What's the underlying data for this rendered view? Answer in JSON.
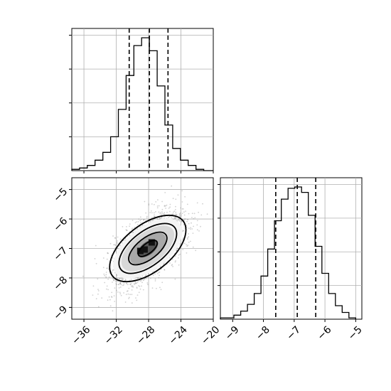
{
  "chart_data": {
    "type": "corner",
    "parameters": [
      "",
      ""
    ],
    "quantiles": {
      "param_1": [
        -30.4,
        -27.9,
        -25.6
      ],
      "param_2": [
        -7.6,
        -6.9,
        -6.3
      ]
    },
    "panels": [
      {
        "kind": "histogram",
        "param": "param_1",
        "xlim": [
          -37.5,
          -20
        ],
        "x_ticks": [
          -36,
          -32,
          -28,
          -24,
          -20
        ],
        "bins_edges": [
          -37.5,
          -36.54,
          -35.58,
          -34.62,
          -33.66,
          -32.7,
          -31.74,
          -30.78,
          -29.82,
          -28.86,
          -27.9,
          -26.94,
          -25.98,
          -25.02,
          -24.06,
          -23.1,
          -22.14,
          -21.18,
          -20.22,
          -20.0
        ],
        "counts": [
          1,
          2,
          4,
          8,
          14,
          26,
          47,
          73,
          96,
          102,
          92,
          65,
          35,
          17,
          8,
          4,
          1,
          0,
          0
        ],
        "grid": true
      },
      {
        "kind": "density",
        "x_param": "param_1",
        "y_param": "param_2",
        "xlim": [
          -37.5,
          -20
        ],
        "ylim": [
          -9.4,
          -4.6
        ],
        "x_ticks": [
          -36,
          -32,
          -28,
          -24,
          -20
        ],
        "y_ticks": [
          -5,
          -6,
          -7,
          -8,
          -9
        ],
        "peak": {
          "x": -28.1,
          "y": -7.0
        },
        "grid": true
      },
      {
        "kind": "histogram",
        "param": "param_2",
        "xlim": [
          -9.4,
          -4.8
        ],
        "x_ticks": [
          -9,
          -8,
          -7,
          -6,
          -5
        ],
        "bins_edges": [
          -9.4,
          -9.18,
          -8.96,
          -8.74,
          -8.52,
          -8.3,
          -8.08,
          -7.86,
          -7.64,
          -7.42,
          -7.2,
          -6.98,
          -6.76,
          -6.54,
          -6.32,
          -6.1,
          -5.88,
          -5.66,
          -5.44,
          -5.22,
          -5.0
        ],
        "counts": [
          1,
          1,
          3,
          6,
          11,
          19,
          32,
          52,
          73,
          89,
          97,
          98,
          94,
          77,
          54,
          34,
          19,
          10,
          5,
          1
        ],
        "grid": true
      }
    ]
  }
}
